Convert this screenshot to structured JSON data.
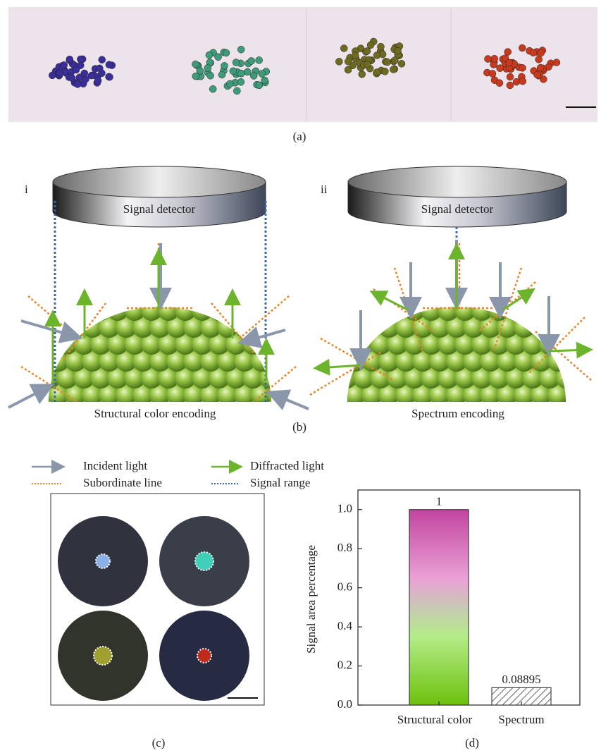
{
  "panels": {
    "a": {
      "label": "(a)"
    },
    "b": {
      "label": "(b)",
      "i": {
        "tag": "i",
        "detector": "Signal detector",
        "caption": "Structural color encoding"
      },
      "ii": {
        "tag": "ii",
        "detector": "Signal detector",
        "caption": "Spectrum encoding"
      }
    },
    "legend": [
      "Incident light",
      "Diffracted light",
      "Subordinate line",
      "Signal range"
    ],
    "c": {
      "label": "(c)"
    },
    "d": {
      "label": "(d)"
    }
  },
  "chart_data": {
    "type": "bar",
    "ylabel": "Signal area percentage",
    "categories": [
      "Structural color",
      "Spectrum"
    ],
    "values": [
      1,
      0.08895
    ],
    "ylim": [
      0,
      1.1
    ],
    "yticks": [
      {
        "value": 0,
        "label": "0.0"
      },
      0.2,
      0.4,
      0.6,
      0.8,
      {
        "value": 1,
        "label": "1.0"
      }
    ]
  }
}
